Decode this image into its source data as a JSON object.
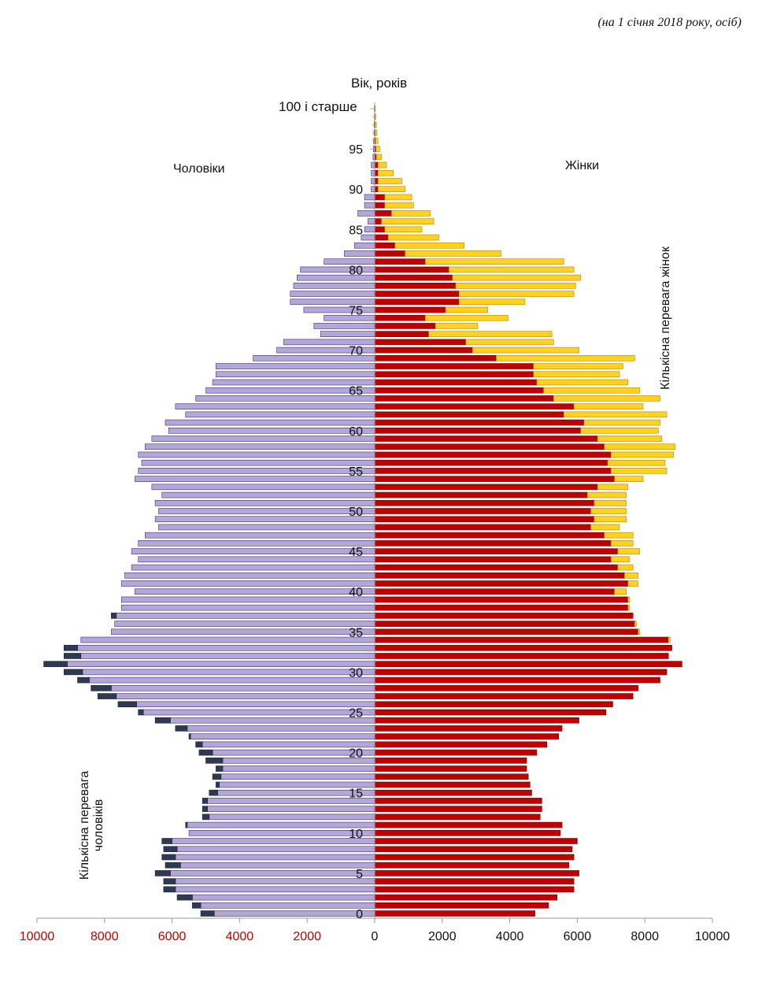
{
  "subtitle": "(на 1 січня 2018 року, осіб)",
  "age_axis_title": "Вік, років",
  "age_top_label": "100 і старше",
  "male_label": "Чоловіки",
  "female_label": "Жінки",
  "female_surplus_label": "Кількісна перевага жінок",
  "male_surplus_label": "Кількісна перевага чоловіків",
  "colors": {
    "male": "#b3a6d9",
    "male_excess": "#2e3a52",
    "female": "#c00000",
    "female_excess": "#ffd21f",
    "axis": "#9a9a9a",
    "tick_label_left": "#c00000",
    "tick_label_right": "#111111"
  },
  "chart_data": {
    "type": "bar",
    "orientation": "horizontal-population-pyramid",
    "title": "",
    "xlabel": "",
    "ylabel": "Вік, років",
    "xlim_male": [
      0,
      10000
    ],
    "xlim_female": [
      0,
      10000
    ],
    "x_ticks_left": [
      "10000",
      "8000",
      "6000",
      "4000",
      "2000"
    ],
    "x_ticks_right": [
      "0",
      "2000",
      "4000",
      "6000",
      "8000",
      "10000"
    ],
    "y_ticks": [
      "0",
      "5",
      "10",
      "15",
      "20",
      "25",
      "30",
      "35",
      "40",
      "45",
      "50",
      "55",
      "60",
      "65",
      "70",
      "75",
      "80",
      "85",
      "90",
      "95"
    ],
    "ages": [
      0,
      1,
      2,
      3,
      4,
      5,
      6,
      7,
      8,
      9,
      10,
      11,
      12,
      13,
      14,
      15,
      16,
      17,
      18,
      19,
      20,
      21,
      22,
      23,
      24,
      25,
      26,
      27,
      28,
      29,
      30,
      31,
      32,
      33,
      34,
      35,
      36,
      37,
      38,
      39,
      40,
      41,
      42,
      43,
      44,
      45,
      46,
      47,
      48,
      49,
      50,
      51,
      52,
      53,
      54,
      55,
      56,
      57,
      58,
      59,
      60,
      61,
      62,
      63,
      64,
      65,
      66,
      67,
      68,
      69,
      70,
      71,
      72,
      73,
      74,
      75,
      76,
      77,
      78,
      79,
      80,
      81,
      82,
      83,
      84,
      85,
      86,
      87,
      88,
      89,
      90,
      91,
      92,
      93,
      94,
      95,
      96,
      97,
      98,
      99,
      100
    ],
    "series": [
      {
        "name": "Чоловіки",
        "values": [
          5150,
          5400,
          5850,
          6250,
          6250,
          6500,
          6200,
          6300,
          6250,
          6300,
          5500,
          5600,
          5100,
          5100,
          5100,
          4900,
          4700,
          4800,
          4700,
          5000,
          5200,
          5300,
          5500,
          5900,
          6500,
          7000,
          7600,
          8200,
          8400,
          8800,
          9200,
          9800,
          9200,
          9200,
          8700,
          7800,
          7700,
          7800,
          7500,
          7500,
          7100,
          7500,
          7400,
          7200,
          7000,
          7200,
          7000,
          6800,
          6400,
          6500,
          6400,
          6500,
          6300,
          6600,
          7100,
          7000,
          6900,
          7000,
          6800,
          6600,
          6100,
          6200,
          5600,
          5900,
          5300,
          5000,
          4800,
          4700,
          4700,
          3600,
          2900,
          2700,
          1600,
          1800,
          1500,
          2100,
          2500,
          2500,
          2400,
          2300,
          2200,
          1500,
          900,
          600,
          400,
          300,
          200,
          500,
          300,
          300,
          100,
          100,
          100,
          100,
          50,
          40,
          30,
          20,
          15,
          10,
          10
        ]
      },
      {
        "name": "Жінки",
        "values": [
          4750,
          5150,
          5400,
          5900,
          5900,
          6050,
          5750,
          5900,
          5850,
          6000,
          5500,
          5550,
          4900,
          4950,
          4950,
          4650,
          4600,
          4550,
          4500,
          4500,
          4800,
          5100,
          5450,
          5550,
          6050,
          6850,
          7050,
          7650,
          7800,
          8450,
          8650,
          9100,
          8700,
          8800,
          8750,
          7850,
          7750,
          7650,
          7550,
          7550,
          7450,
          7800,
          7800,
          7650,
          7550,
          7850,
          7650,
          7650,
          7250,
          7450,
          7450,
          7450,
          7450,
          7500,
          7950,
          8650,
          8600,
          8850,
          8900,
          8500,
          8400,
          8450,
          8650,
          7950,
          8450,
          7850,
          7500,
          7250,
          7350,
          7700,
          6050,
          5300,
          5250,
          3050,
          3950,
          3350,
          4450,
          5900,
          5950,
          6100,
          5900,
          5600,
          3750,
          2650,
          1900,
          1400,
          1750,
          1650,
          1150,
          1100,
          900,
          800,
          550,
          350,
          200,
          150,
          100,
          70,
          50,
          30,
          20
        ]
      }
    ]
  }
}
